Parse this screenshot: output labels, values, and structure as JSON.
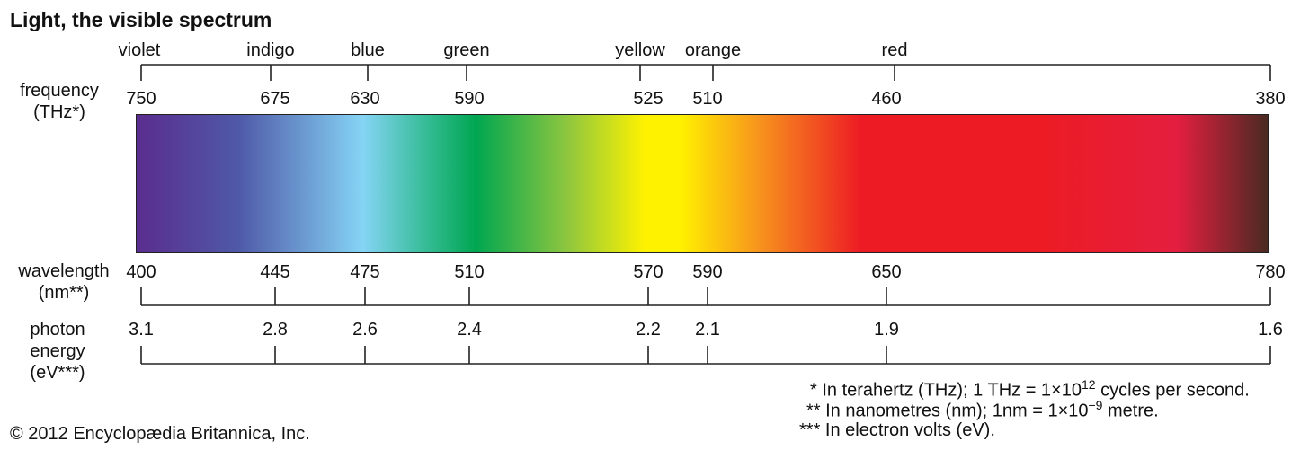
{
  "title": "Light, the visible spectrum",
  "colors": [
    {
      "name": "violet",
      "hex": "#5a2d8e"
    },
    {
      "name": "indigo",
      "hex": "#4f59a8"
    },
    {
      "name": "blue",
      "hex": "#85d4f5"
    },
    {
      "name": "green",
      "hex": "#00a651"
    },
    {
      "name": "yellow",
      "hex": "#fff200"
    },
    {
      "name": "orange",
      "hex": "#f7941d"
    },
    {
      "name": "red",
      "hex": "#ed1c24"
    }
  ],
  "rows": {
    "frequency": {
      "label_line1": "frequency",
      "label_line2": "(THz*)",
      "ticks": [
        "750",
        "675",
        "630",
        "590",
        "525",
        "510",
        "460",
        "380"
      ]
    },
    "wavelength": {
      "label_line1": "wavelength",
      "label_line2": "(nm**)",
      "ticks": [
        "400",
        "445",
        "475",
        "510",
        "570",
        "590",
        "650",
        "780"
      ]
    },
    "energy": {
      "label_line1": "photon",
      "label_line2": "energy",
      "label_line3": "(eV***)",
      "ticks": [
        "3.1",
        "2.8",
        "2.6",
        "2.4",
        "2.2",
        "2.1",
        "1.9",
        "1.6"
      ]
    }
  },
  "notes": {
    "note1_prefix": "* In terahertz (THz); 1 THz = 1×10",
    "note1_sup": "12",
    "note1_suffix": " cycles per second.",
    "note2_prefix": "** In nanometres (nm); 1nm = 1×10",
    "note2_sup": "−9",
    "note2_suffix": " metre.",
    "note3": "*** In electron volts (eV)."
  },
  "copyright": "© 2012 Encyclopædia Britannica, Inc.",
  "spectrum_colors": {
    "violet": "#5a2d8e",
    "indigo": "#4f59a8",
    "blue": "#85d4f5",
    "teal": "#3dbfa0",
    "green": "#00a651",
    "lime": "#8dc63f",
    "yellow": "#fff200",
    "orange": "#f7941d",
    "red": "#ed1c24",
    "crimson": "#e41e3f",
    "dark": "#4a2a22"
  }
}
